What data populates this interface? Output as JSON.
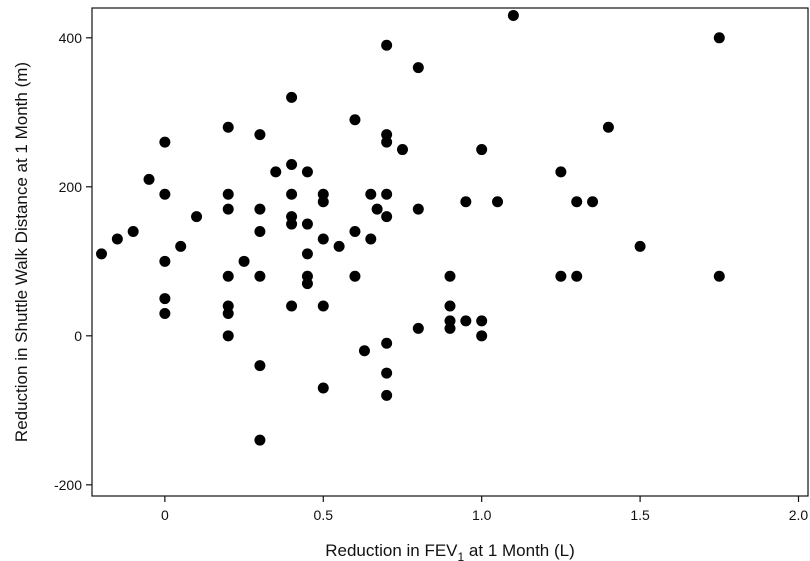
{
  "chart_data": {
    "type": "scatter",
    "title": "",
    "xlabel_parts": {
      "pre": "Reduction in FEV",
      "sub": "1",
      "post": " at 1 Month (L)"
    },
    "ylabel": "Reduction in Shuttle Walk Distance at 1 Month (m)",
    "xlim": [
      -0.23,
      2.03
    ],
    "ylim": [
      -215,
      440
    ],
    "x_ticks": [
      0,
      0.5,
      1.0,
      1.5,
      2.0
    ],
    "x_tick_labels": [
      "0",
      "0.5",
      "1.0",
      "1.5",
      "2.0"
    ],
    "y_ticks": [
      -200,
      0,
      200,
      400
    ],
    "y_tick_labels": [
      "-200",
      "0",
      "200",
      "400"
    ],
    "grid": false,
    "legend": "none",
    "marker_color": "#000000",
    "points": [
      {
        "x": -0.2,
        "y": 110
      },
      {
        "x": -0.15,
        "y": 130
      },
      {
        "x": -0.1,
        "y": 140
      },
      {
        "x": -0.05,
        "y": 210
      },
      {
        "x": 0.0,
        "y": 260
      },
      {
        "x": 0.0,
        "y": 190
      },
      {
        "x": 0.0,
        "y": 100
      },
      {
        "x": 0.0,
        "y": 50
      },
      {
        "x": 0.0,
        "y": 30
      },
      {
        "x": 0.05,
        "y": 120
      },
      {
        "x": 0.1,
        "y": 160
      },
      {
        "x": 0.2,
        "y": 280
      },
      {
        "x": 0.2,
        "y": 190
      },
      {
        "x": 0.2,
        "y": 170
      },
      {
        "x": 0.2,
        "y": 80
      },
      {
        "x": 0.2,
        "y": 40
      },
      {
        "x": 0.2,
        "y": 30
      },
      {
        "x": 0.2,
        "y": 0
      },
      {
        "x": 0.25,
        "y": 100
      },
      {
        "x": 0.3,
        "y": 270
      },
      {
        "x": 0.3,
        "y": 170
      },
      {
        "x": 0.3,
        "y": 140
      },
      {
        "x": 0.3,
        "y": 80
      },
      {
        "x": 0.3,
        "y": -40
      },
      {
        "x": 0.3,
        "y": -140
      },
      {
        "x": 0.35,
        "y": 220
      },
      {
        "x": 0.4,
        "y": 320
      },
      {
        "x": 0.4,
        "y": 230
      },
      {
        "x": 0.4,
        "y": 190
      },
      {
        "x": 0.4,
        "y": 160
      },
      {
        "x": 0.4,
        "y": 150
      },
      {
        "x": 0.4,
        "y": 40
      },
      {
        "x": 0.45,
        "y": 220
      },
      {
        "x": 0.45,
        "y": 150
      },
      {
        "x": 0.45,
        "y": 110
      },
      {
        "x": 0.45,
        "y": 80
      },
      {
        "x": 0.45,
        "y": 70
      },
      {
        "x": 0.5,
        "y": 190
      },
      {
        "x": 0.5,
        "y": 180
      },
      {
        "x": 0.5,
        "y": 130
      },
      {
        "x": 0.5,
        "y": 40
      },
      {
        "x": 0.5,
        "y": -70
      },
      {
        "x": 0.55,
        "y": 120
      },
      {
        "x": 0.6,
        "y": 290
      },
      {
        "x": 0.6,
        "y": 140
      },
      {
        "x": 0.6,
        "y": 80
      },
      {
        "x": 0.63,
        "y": -20
      },
      {
        "x": 0.65,
        "y": 190
      },
      {
        "x": 0.65,
        "y": 130
      },
      {
        "x": 0.67,
        "y": 170
      },
      {
        "x": 0.7,
        "y": 390
      },
      {
        "x": 0.7,
        "y": 270
      },
      {
        "x": 0.7,
        "y": 260
      },
      {
        "x": 0.7,
        "y": 190
      },
      {
        "x": 0.7,
        "y": 160
      },
      {
        "x": 0.7,
        "y": -10
      },
      {
        "x": 0.7,
        "y": -50
      },
      {
        "x": 0.7,
        "y": -80
      },
      {
        "x": 0.75,
        "y": 250
      },
      {
        "x": 0.8,
        "y": 360
      },
      {
        "x": 0.8,
        "y": 170
      },
      {
        "x": 0.8,
        "y": 10
      },
      {
        "x": 0.9,
        "y": 80
      },
      {
        "x": 0.9,
        "y": 40
      },
      {
        "x": 0.9,
        "y": 20
      },
      {
        "x": 0.9,
        "y": 10
      },
      {
        "x": 0.95,
        "y": 180
      },
      {
        "x": 0.95,
        "y": 20
      },
      {
        "x": 1.0,
        "y": 250
      },
      {
        "x": 1.0,
        "y": 20
      },
      {
        "x": 1.0,
        "y": 0
      },
      {
        "x": 1.05,
        "y": 180
      },
      {
        "x": 1.1,
        "y": 430
      },
      {
        "x": 1.25,
        "y": 220
      },
      {
        "x": 1.25,
        "y": 80
      },
      {
        "x": 1.3,
        "y": 180
      },
      {
        "x": 1.3,
        "y": 80
      },
      {
        "x": 1.35,
        "y": 180
      },
      {
        "x": 1.4,
        "y": 280
      },
      {
        "x": 1.5,
        "y": 120
      },
      {
        "x": 1.75,
        "y": 400
      },
      {
        "x": 1.75,
        "y": 80
      }
    ]
  }
}
